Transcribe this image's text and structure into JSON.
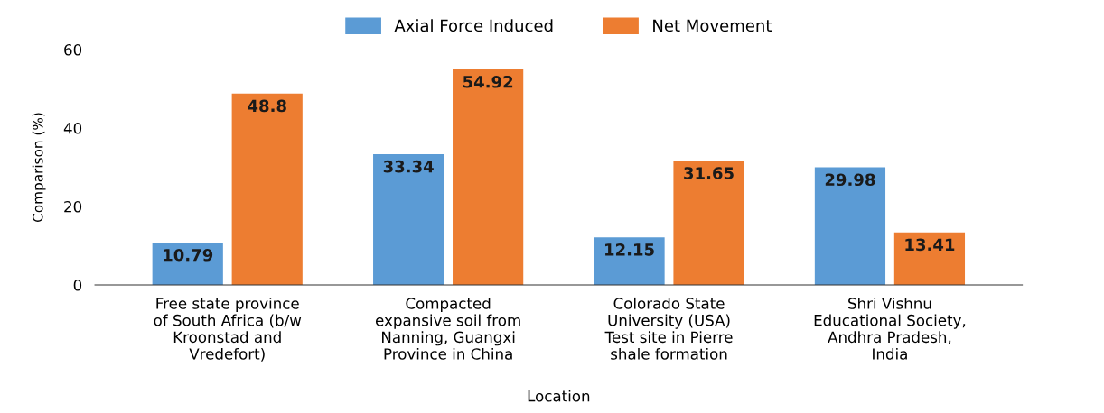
{
  "chart_data": {
    "type": "bar",
    "xlabel": "Location",
    "ylabel": "Comparison (%)",
    "categories": [
      "Free state province\nof South Africa (b/w\nKroonstad and\nVredefort)",
      "Compacted\nexpansive soil from\nNanning, Guangxi\nProvince in China",
      "Colorado State\nUniversity (USA)\nTest site in Pierre\nshale formation",
      "Shri Vishnu\nEducational Society,\nAndhra Pradesh,\nIndia"
    ],
    "series": [
      {
        "name": "Axial Force Induced",
        "color": "#5b9bd5",
        "values": [
          10.79,
          33.34,
          12.15,
          29.98
        ]
      },
      {
        "name": "Net Movement",
        "color": "#ed7d31",
        "values": [
          48.8,
          54.92,
          31.65,
          13.41
        ]
      }
    ],
    "ylim": [
      0,
      60
    ],
    "yticks": [
      0,
      20,
      40,
      60
    ],
    "grid": false,
    "legend": "top",
    "data_labels": true
  }
}
